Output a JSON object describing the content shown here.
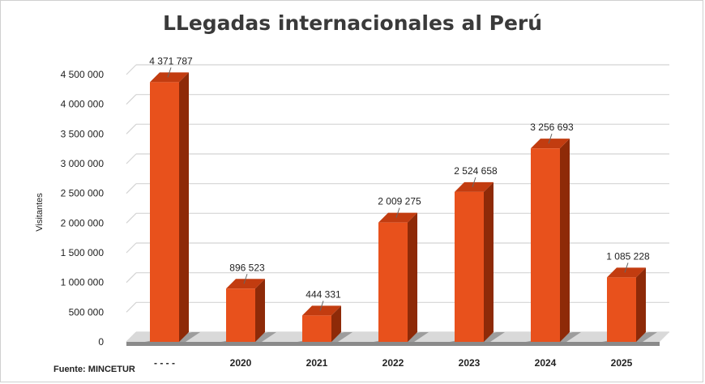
{
  "chart_data": {
    "type": "bar",
    "title": "LLegadas internacionales al Perú",
    "ylabel": "Visitantes",
    "xlabel": "",
    "categories": [
      "- - - -",
      "2020",
      "2021",
      "2022",
      "2023",
      "2024",
      "2025"
    ],
    "values": [
      4371787,
      896523,
      444331,
      2009275,
      2524658,
      3256693,
      1085228
    ],
    "value_labels": [
      "4 371 787",
      "896 523",
      "444 331",
      "2 009 275",
      "2 524 658",
      "3 256 693",
      "1 085 228"
    ],
    "ylim": [
      0,
      4500000
    ],
    "yticks": [
      0,
      500000,
      1000000,
      1500000,
      2000000,
      2500000,
      3000000,
      3500000,
      4000000,
      4500000
    ],
    "ytick_labels": [
      "0",
      "500 000",
      "1 000 000",
      "1 500 000",
      "2 000 000",
      "2 500 000",
      "3 000 000",
      "3 500 000",
      "4 000 000",
      "4 500 000"
    ],
    "grid": true,
    "legend": "none",
    "colors": {
      "bar_front": "#e8511c",
      "bar_side": "#8e2a08",
      "bar_top": "#c23c10",
      "grid": "#d4d4d4",
      "floor": "#8a8a8a"
    }
  },
  "footer": {
    "source": "Fuente: MINCETUR"
  }
}
